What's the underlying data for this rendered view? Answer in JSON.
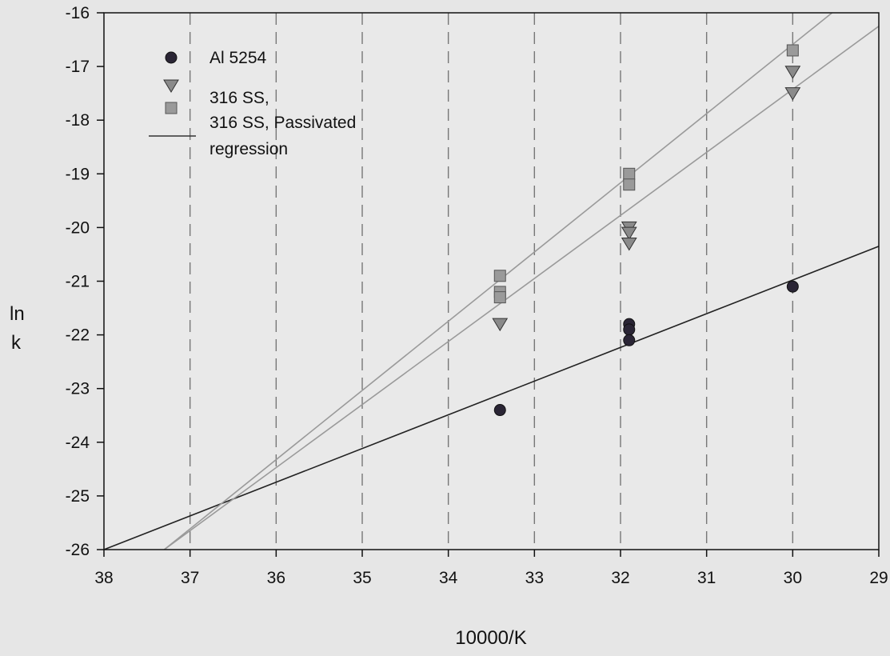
{
  "chart_data": {
    "type": "scatter",
    "title": "",
    "xlabel": "10000/K",
    "ylabel_lines": [
      "ln",
      "k"
    ],
    "xlim": [
      38,
      29
    ],
    "ylim": [
      -26,
      -16
    ],
    "x_reversed": true,
    "grid": "vertical dashed",
    "legend_position": "top-left",
    "xticks": [
      "38",
      "37",
      "36",
      "35",
      "34",
      "33",
      "32",
      "31",
      "30",
      "29"
    ],
    "yticks": [
      "-16",
      "-17",
      "-18",
      "-19",
      "-20",
      "-21",
      "-22",
      "-23",
      "-24",
      "-25",
      "-26"
    ],
    "series": [
      {
        "name": "Al 5254",
        "marker": "circle",
        "color": "#2a2535",
        "points": [
          [
            33.4,
            -23.4
          ],
          [
            31.9,
            -21.8
          ],
          [
            31.9,
            -21.9
          ],
          [
            31.9,
            -22.1
          ],
          [
            30.0,
            -21.1
          ]
        ]
      },
      {
        "name": "316 SS,",
        "marker": "triangle-down",
        "color": "#8a8a8a",
        "points": [
          [
            33.4,
            -21.8
          ],
          [
            31.9,
            -20.0
          ],
          [
            31.9,
            -20.1
          ],
          [
            31.9,
            -20.3
          ],
          [
            30.0,
            -17.1
          ],
          [
            30.0,
            -17.5
          ]
        ]
      },
      {
        "name": "316 SS, Passivated",
        "marker": "square",
        "color": "#9a9a9a",
        "points": [
          [
            33.4,
            -20.9
          ],
          [
            33.4,
            -21.2
          ],
          [
            33.4,
            -21.3
          ],
          [
            31.9,
            -19.0
          ],
          [
            31.9,
            -19.2
          ],
          [
            30.0,
            -16.7
          ]
        ]
      }
    ],
    "regression": {
      "name": "regression",
      "lines": [
        {
          "for": "Al 5254",
          "color": "#222222",
          "x": [
            38.0,
            29.0
          ],
          "y": [
            -26.0,
            -20.35
          ]
        },
        {
          "for": "316 SS,",
          "color": "#9a9a9a",
          "x": [
            37.3,
            29.0
          ],
          "y": [
            -26.0,
            -16.25
          ]
        },
        {
          "for": "316 SS, Passivated",
          "color": "#9a9a9a",
          "x": [
            37.3,
            29.0
          ],
          "y": [
            -26.0,
            -15.3
          ]
        }
      ]
    }
  }
}
